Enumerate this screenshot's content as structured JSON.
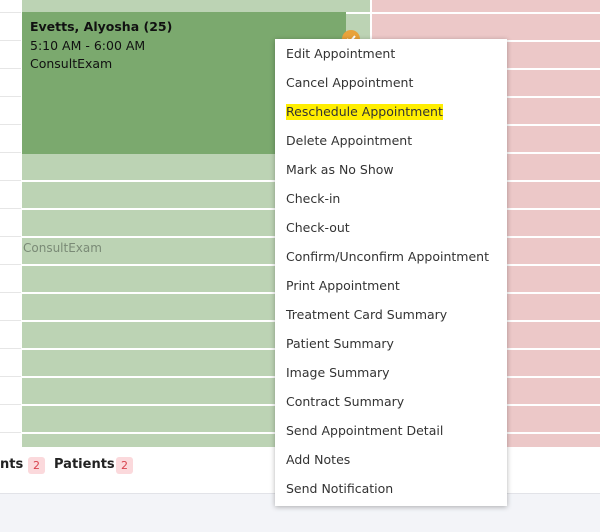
{
  "appointment": {
    "name": "Evetts, Alyosha (25)",
    "time": "5:10 AM - 6:00 AM",
    "type": "ConsultExam"
  },
  "slot_label": "ConsultExam",
  "footer": {
    "tabs": [
      {
        "label": "nts",
        "count": "2"
      },
      {
        "label": "Patients",
        "count": "2"
      }
    ]
  },
  "menu": {
    "highlighted": 2,
    "items": [
      "Edit Appointment",
      "Cancel Appointment",
      "Reschedule Appointment",
      "Delete Appointment",
      "Mark as No Show",
      "Check-in",
      "Check-out",
      "Confirm/Unconfirm Appointment",
      "Print Appointment",
      "Treatment Card Summary",
      "Patient Summary",
      "Image Summary",
      "Contract Summary",
      "Send Appointment Detail",
      "Add Notes",
      "Send Notification"
    ]
  }
}
